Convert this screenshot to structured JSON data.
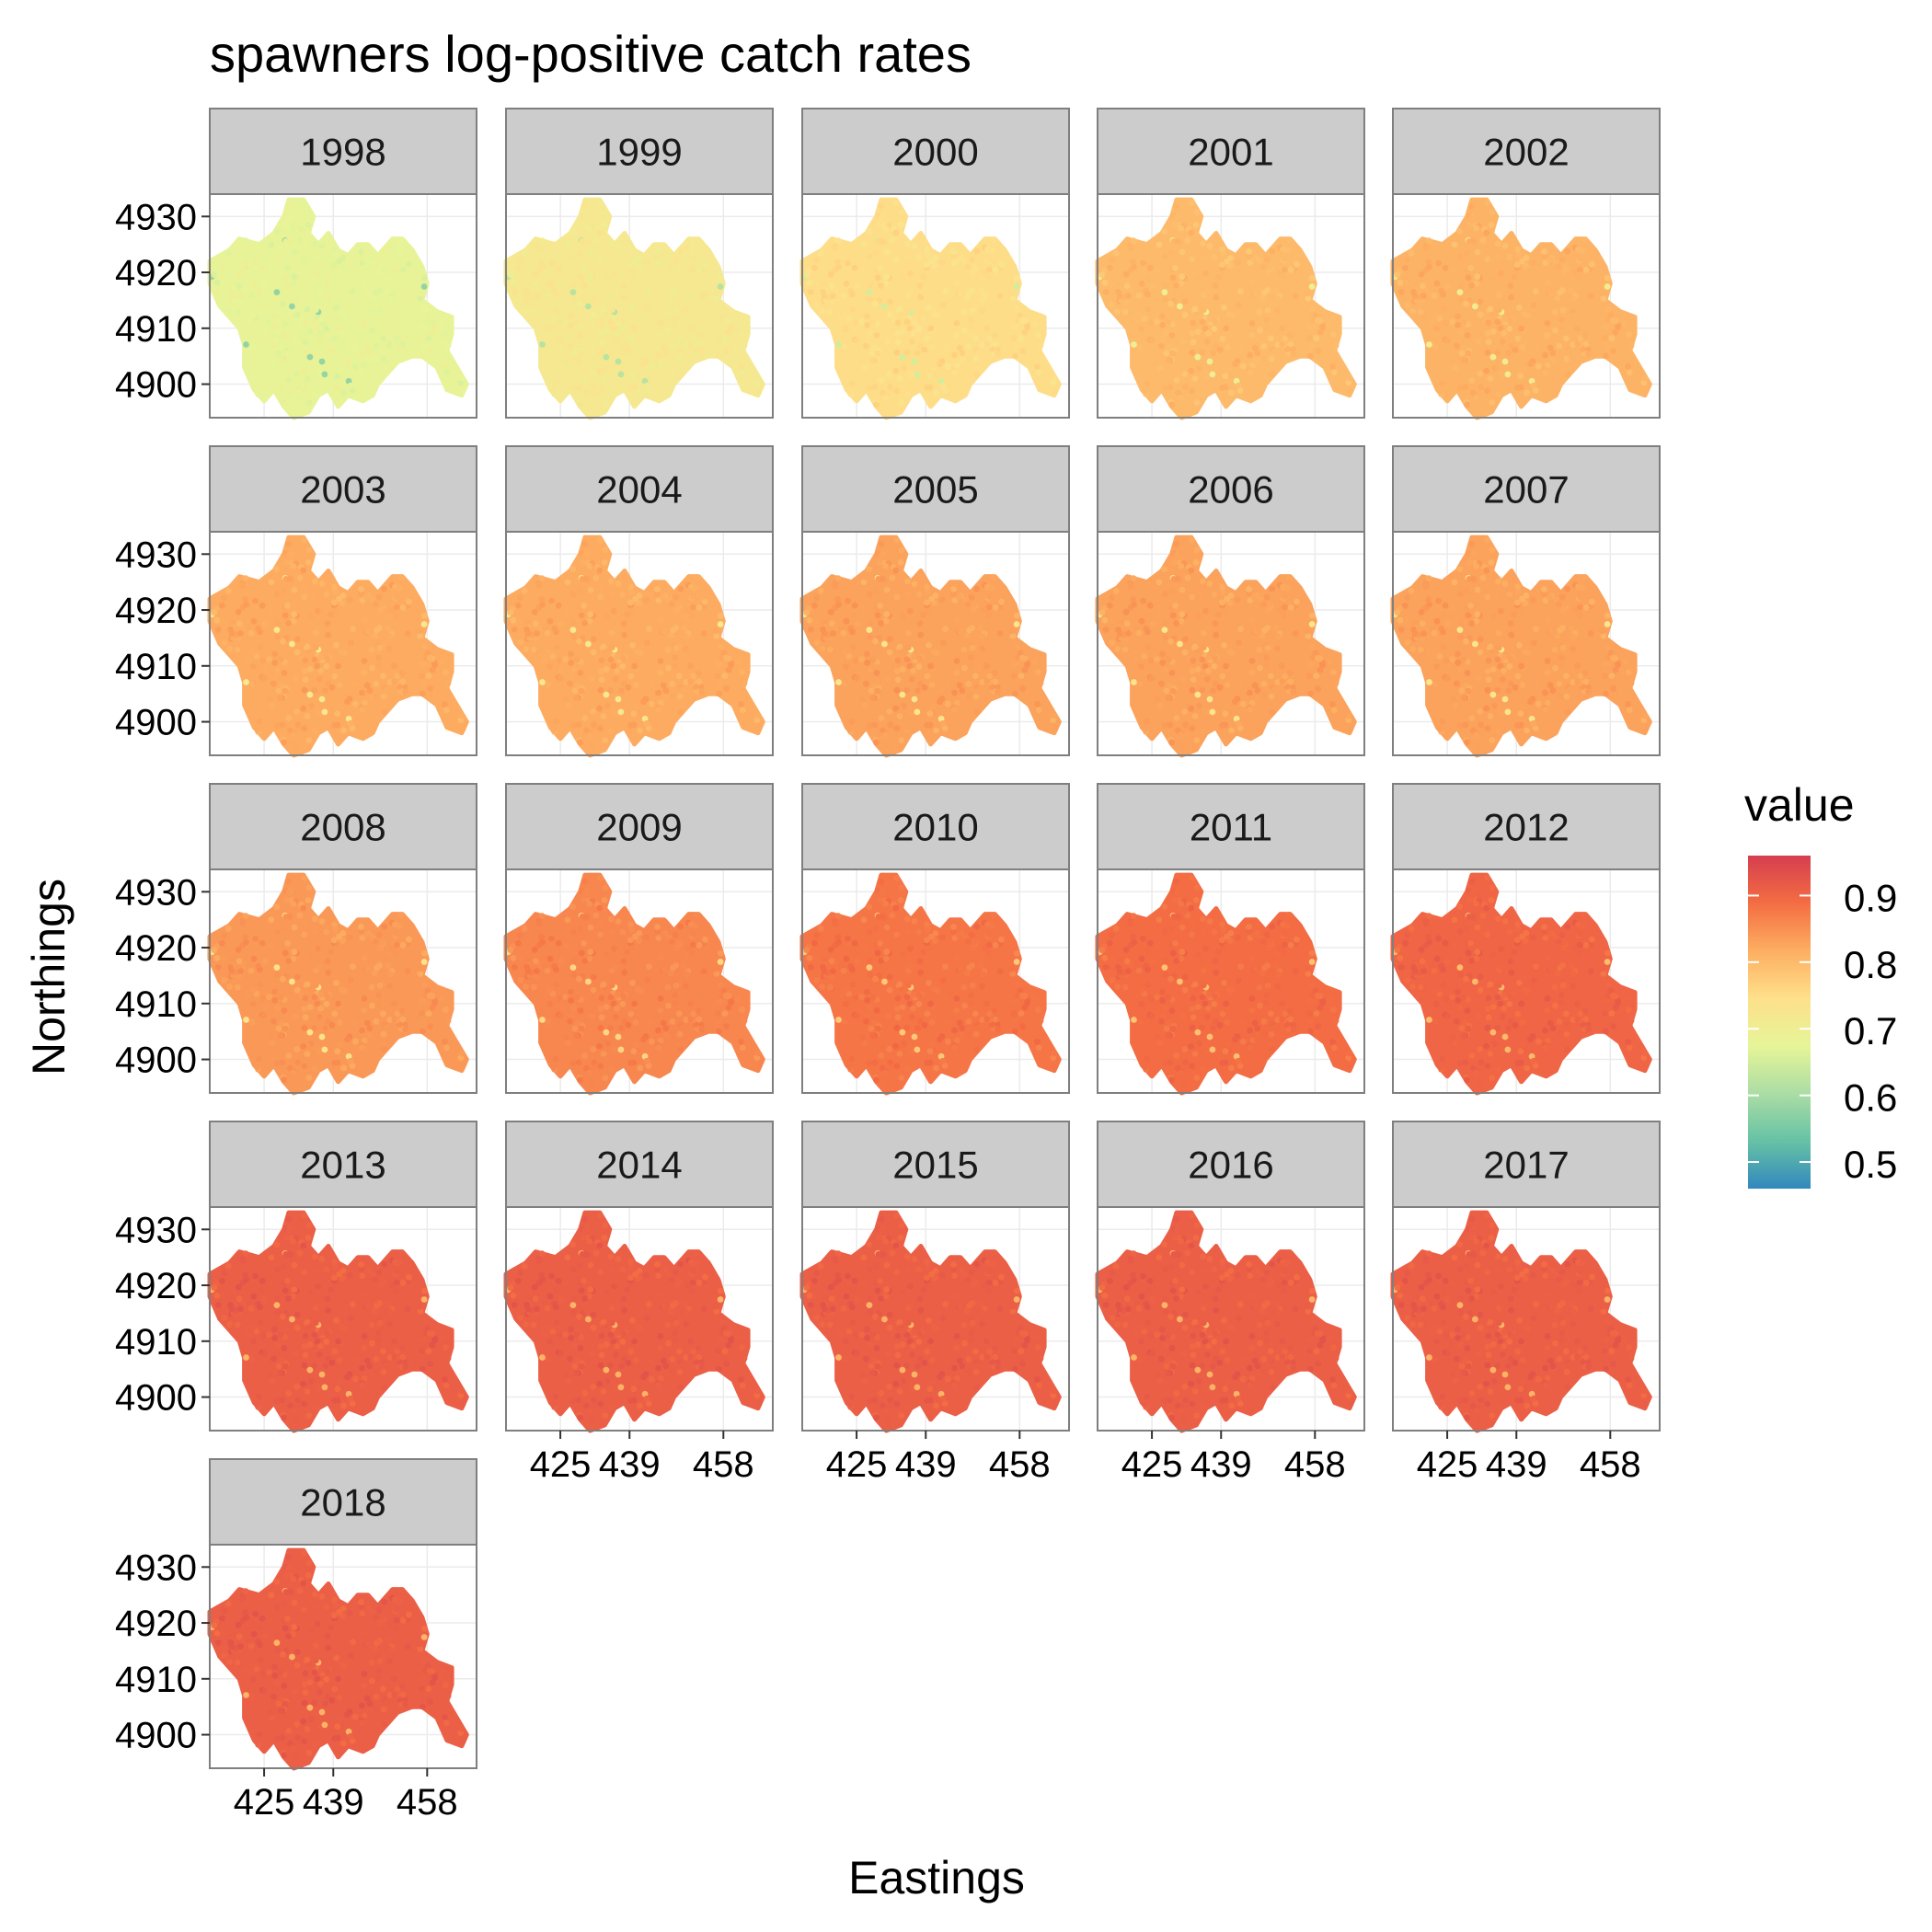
{
  "chart_data": {
    "type": "scatter",
    "title": "spawners log-positive catch rates",
    "xlabel": "Eastings",
    "ylabel": "Northings",
    "facet_by": "year",
    "facets": [
      "1998",
      "1999",
      "2000",
      "2001",
      "2002",
      "2003",
      "2004",
      "2005",
      "2006",
      "2007",
      "2008",
      "2009",
      "2010",
      "2011",
      "2012",
      "2013",
      "2014",
      "2015",
      "2016",
      "2017",
      "2018"
    ],
    "facet_ncol": 5,
    "x_ticks": [
      425,
      439,
      458
    ],
    "x_tick_labels": [
      "425",
      "439",
      "458"
    ],
    "y_ticks": [
      4900,
      4910,
      4920,
      4930
    ],
    "y_tick_labels": [
      "4900",
      "4910",
      "4920",
      "4930"
    ],
    "xlim": [
      414,
      468
    ],
    "ylim": [
      4894,
      4934
    ],
    "facet_mean_values": [
      0.68,
      0.72,
      0.75,
      0.8,
      0.81,
      0.82,
      0.82,
      0.83,
      0.83,
      0.83,
      0.84,
      0.86,
      0.88,
      0.89,
      0.9,
      0.91,
      0.91,
      0.91,
      0.91,
      0.91,
      0.91
    ],
    "legend": {
      "title": "value",
      "position": "right",
      "range": [
        0.46,
        0.96
      ],
      "ticks": [
        0.5,
        0.6,
        0.7,
        0.8,
        0.9
      ],
      "tick_labels": [
        "0.5",
        "0.6",
        "0.7",
        "0.8",
        "0.9"
      ],
      "palette": [
        "#3288bd",
        "#66c2a5",
        "#abdda4",
        "#e6f598",
        "#fee08b",
        "#fdae61",
        "#f46d43",
        "#d53e4f"
      ]
    },
    "grid": true,
    "colors": {
      "strip_bg": "#cccccc",
      "panel_border": "#7f7f7f",
      "grid": "#ebebeb"
    }
  }
}
